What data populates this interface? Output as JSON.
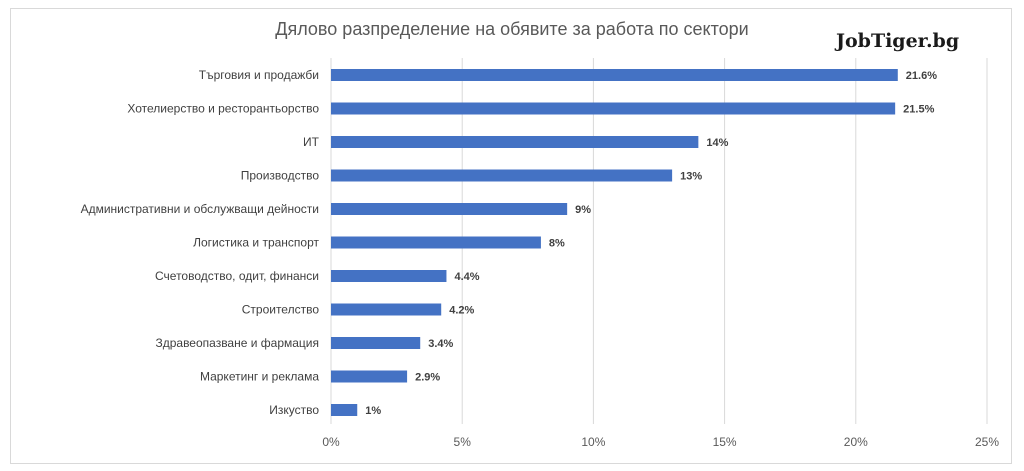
{
  "brand": "JobTiger.bg",
  "chart_data": {
    "type": "bar",
    "orientation": "horizontal",
    "title": "Дялово разпределение на обявите за работа по сектори",
    "categories": [
      "Търговия и продажби",
      "Хотелиерство и ресторантьорство",
      "ИТ",
      "Производство",
      "Административни и обслужващи дейности",
      "Логистика и транспорт",
      "Счетоводство, одит, финанси",
      "Строителство",
      "Здравеопазване и фармация",
      "Маркетинг и реклама",
      "Изкуство"
    ],
    "values": [
      21.6,
      21.5,
      14,
      13,
      9,
      8,
      4.4,
      4.2,
      3.4,
      2.9,
      1
    ],
    "data_labels": [
      "21.6%",
      "21.5%",
      "14%",
      "13%",
      "9%",
      "8%",
      "4.4%",
      "4.2%",
      "3.4%",
      "2.9%",
      "1%"
    ],
    "x_ticks": [
      "0%",
      "5%",
      "10%",
      "15%",
      "20%",
      "25%"
    ],
    "xlim": [
      0,
      25
    ],
    "grid": true,
    "bar_color": "#4472c4",
    "grid_color": "#d9d9d9",
    "legend": "none"
  }
}
